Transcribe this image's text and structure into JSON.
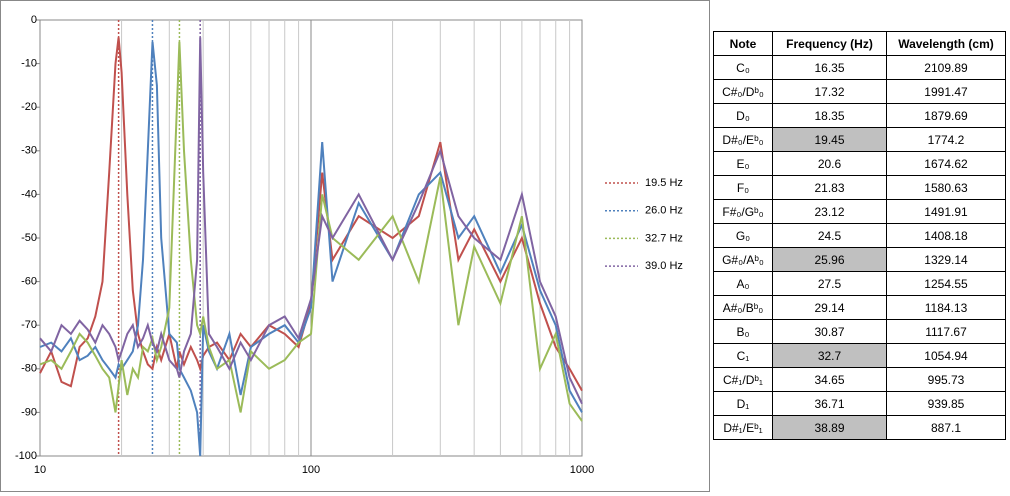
{
  "chart_data": {
    "type": "line",
    "x": [
      10,
      11,
      12,
      13,
      14,
      15,
      16,
      17,
      18,
      19,
      19.5,
      20,
      21,
      22,
      23,
      24,
      25,
      26,
      27,
      28,
      30,
      32,
      32.7,
      34,
      36,
      38,
      39,
      40,
      42,
      45,
      50,
      55,
      60,
      70,
      80,
      90,
      100,
      110,
      120,
      150,
      200,
      250,
      300,
      350,
      400,
      500,
      600,
      700,
      800,
      900,
      1000
    ],
    "series": [
      {
        "color": "#c0504d",
        "values": [
          -81,
          -76,
          -83,
          -84,
          -75,
          -73,
          -68,
          -60,
          -35,
          -10,
          -4,
          -12,
          -40,
          -62,
          -72,
          -76,
          -79,
          -80,
          -75,
          -78,
          -72,
          -80,
          -76,
          -79,
          -75,
          -78,
          -80,
          -77,
          -75,
          -74,
          -78,
          -72,
          -75,
          -70,
          -72,
          -75,
          -65,
          -35,
          -55,
          -45,
          -50,
          -45,
          -28,
          -55,
          -48,
          -60,
          -50,
          -65,
          -75,
          -80,
          -85
        ]
      },
      {
        "color": "#4f81bd",
        "values": [
          -75,
          -74,
          -76,
          -73,
          -78,
          -77,
          -75,
          -78,
          -80,
          -82,
          -79,
          -80,
          -78,
          -76,
          -70,
          -55,
          -30,
          -5,
          -15,
          -50,
          -72,
          -74,
          -80,
          -82,
          -85,
          -90,
          -100,
          -70,
          -76,
          -80,
          -72,
          -86,
          -75,
          -72,
          -70,
          -74,
          -66,
          -28,
          -60,
          -42,
          -55,
          -40,
          -35,
          -50,
          -45,
          -58,
          -47,
          -62,
          -70,
          -85,
          -90
        ]
      },
      {
        "color": "#9bbb59",
        "values": [
          -79,
          -78,
          -80,
          -76,
          -72,
          -74,
          -77,
          -80,
          -82,
          -90,
          -84,
          -78,
          -86,
          -80,
          -82,
          -75,
          -76,
          -73,
          -78,
          -75,
          -66,
          -20,
          -5,
          -30,
          -55,
          -70,
          -72,
          -68,
          -75,
          -80,
          -78,
          -90,
          -76,
          -80,
          -78,
          -74,
          -72,
          -40,
          -50,
          -55,
          -45,
          -60,
          -36,
          -70,
          -52,
          -65,
          -45,
          -80,
          -72,
          -88,
          -92
        ]
      },
      {
        "color": "#8064a2",
        "values": [
          -73,
          -76,
          -70,
          -72,
          -69,
          -71,
          -74,
          -70,
          -72,
          -75,
          -78,
          -76,
          -72,
          -70,
          -75,
          -73,
          -70,
          -74,
          -76,
          -72,
          -78,
          -80,
          -82,
          -76,
          -72,
          -55,
          -4,
          -35,
          -72,
          -75,
          -80,
          -74,
          -78,
          -70,
          -68,
          -73,
          -64,
          -45,
          -50,
          -40,
          -55,
          -42,
          -30,
          -45,
          -50,
          -55,
          -40,
          -60,
          -68,
          -82,
          -88
        ]
      }
    ],
    "markers": [
      {
        "name": "19.5 Hz",
        "color": "#c0504d",
        "x": 19.5
      },
      {
        "name": "26.0 Hz",
        "color": "#4f81bd",
        "x": 26.0
      },
      {
        "name": "32.7 Hz",
        "color": "#9bbb59",
        "x": 32.7
      },
      {
        "name": "39.0 Hz",
        "color": "#8064a2",
        "x": 39.0
      }
    ],
    "xlim": [
      10,
      1000
    ],
    "xticks": [
      10,
      100,
      1000
    ],
    "xlog": true,
    "minor_grid": true,
    "ylim": [
      -100,
      0
    ],
    "yticks": [
      0,
      -10,
      -20,
      -30,
      -40,
      -50,
      -60,
      -70,
      -80,
      -90,
      -100
    ],
    "legend": "right"
  },
  "table": {
    "header": [
      "Note",
      "Frequency (Hz)",
      "Wavelength (cm)"
    ],
    "rows": [
      {
        "note": "C₀",
        "freq": 16.35,
        "wave": 2109.89,
        "highlight": false
      },
      {
        "note": "C#₀/Dᵇ₀",
        "freq": 17.32,
        "wave": 1991.47,
        "highlight": false
      },
      {
        "note": "D₀",
        "freq": 18.35,
        "wave": 1879.69,
        "highlight": false
      },
      {
        "note": "D#₀/Eᵇ₀",
        "freq": 19.45,
        "wave": 1774.2,
        "highlight": true
      },
      {
        "note": "E₀",
        "freq": 20.6,
        "wave": 1674.62,
        "highlight": false
      },
      {
        "note": "F₀",
        "freq": 21.83,
        "wave": 1580.63,
        "highlight": false
      },
      {
        "note": "F#₀/Gᵇ₀",
        "freq": 23.12,
        "wave": 1491.91,
        "highlight": false
      },
      {
        "note": "G₀",
        "freq": 24.5,
        "wave": 1408.18,
        "highlight": false
      },
      {
        "note": "G#₀/Aᵇ₀",
        "freq": 25.96,
        "wave": 1329.14,
        "highlight": true
      },
      {
        "note": "A₀",
        "freq": 27.5,
        "wave": 1254.55,
        "highlight": false
      },
      {
        "note": "A#₀/Bᵇ₀",
        "freq": 29.14,
        "wave": 1184.13,
        "highlight": false
      },
      {
        "note": "B₀",
        "freq": 30.87,
        "wave": 1117.67,
        "highlight": false
      },
      {
        "note": "C₁",
        "freq": 32.7,
        "wave": 1054.94,
        "highlight": true
      },
      {
        "note": "C#₁/Dᵇ₁",
        "freq": 34.65,
        "wave": 995.73,
        "highlight": false
      },
      {
        "note": "D₁",
        "freq": 36.71,
        "wave": 939.85,
        "highlight": false
      },
      {
        "note": "D#₁/Eᵇ₁",
        "freq": 38.89,
        "wave": 887.1,
        "highlight": true
      }
    ]
  }
}
